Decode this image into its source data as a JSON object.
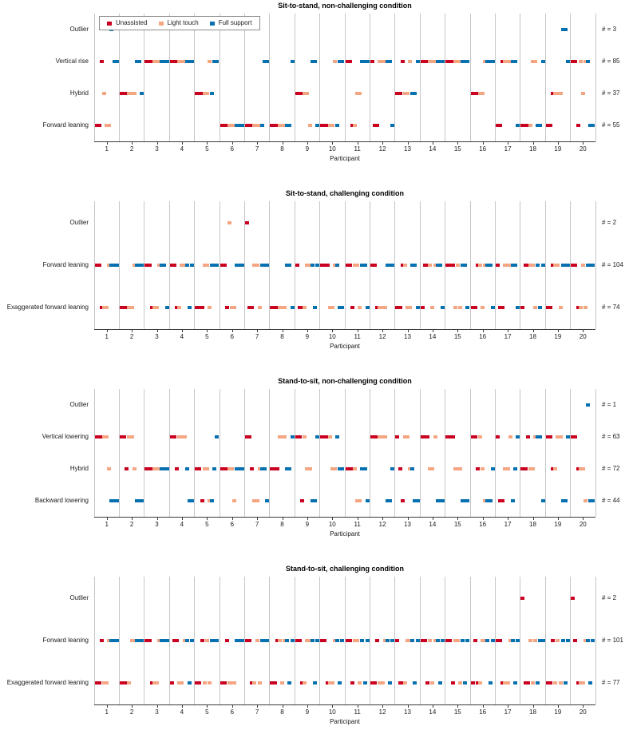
{
  "legend": {
    "items": [
      {
        "key": "U",
        "label": "Unassisted",
        "color": "#ca0020"
      },
      {
        "key": "L",
        "label": "Light touch",
        "color": "#f4a582"
      },
      {
        "key": "B",
        "label": "Full support",
        "color": "#0571b0"
      }
    ]
  },
  "x_axis": {
    "label": "Participant",
    "ticks": [
      "1",
      "2",
      "3",
      "4",
      "5",
      "6",
      "7",
      "8",
      "9",
      "10",
      "11",
      "12",
      "13",
      "14",
      "15",
      "16",
      "17",
      "18",
      "19",
      "20"
    ]
  },
  "trial_color_keys": [
    "U",
    "U",
    "U",
    "L",
    "L",
    "L",
    "B",
    "B",
    "B"
  ],
  "encoding_note": "Each participant string lists 9 trials left-to-right; the letter is the strategy row for that trial; trials 1-3 Unassisted, 4-6 Light touch, 7-9 Full support.",
  "chart_data": [
    {
      "type": "scatter",
      "title": "Sit-to-stand, non-challenging condition",
      "xlabel": "Participant",
      "x_range": [
        1,
        20
      ],
      "show_legend": true,
      "legend_position": "top-left",
      "rows": [
        {
          "key": "O",
          "label": "Outlier",
          "count": 3,
          "count_label": "# = 3"
        },
        {
          "key": "V",
          "label": "Vertical rise",
          "count": 85,
          "count_label": "# = 85"
        },
        {
          "key": "H",
          "label": "Hybrid",
          "count": 37,
          "count_label": "# = 37"
        },
        {
          "key": "F",
          "label": "Forward leaning",
          "count": 55,
          "count_label": "# = 55"
        }
      ],
      "participant_trials": [
        "FFVHFFOVV",
        "HHHHHHVVH",
        "VVVVVVVVV",
        "VVVVVVVVV",
        "HHHHHVHVV",
        "FFFFFFFFF",
        "FFFFFFFVV",
        "FFFFFFFFV",
        "HHHHHFVVF",
        "FFFFFVFVV",
        "VVFFHHVVV",
        "VFFVVVVVF",
        "HHVHHVHHV",
        "VVVVVVVVV",
        "VVVVVVVVV",
        "HHHHHVVVV",
        "FFVVVVVVF",
        "FFFFVVFFV",
        "FFHHHHOOV",
        "VVFVHVVFF"
      ]
    },
    {
      "type": "scatter",
      "title": "Sit-to-stand, challenging condition",
      "xlabel": "Participant",
      "x_range": [
        1,
        20
      ],
      "show_legend": false,
      "rows": [
        {
          "key": "O",
          "label": "Outlier",
          "count": 2,
          "count_label": "# = 2"
        },
        {
          "key": "F",
          "label": "Forward leaning",
          "count": 104,
          "count_label": "# = 104"
        },
        {
          "key": "E",
          "label": "Exaggerated forward leaning",
          "count": 74,
          "count_label": "# = 74"
        }
      ],
      "participant_trials": [
        "FFEEEFFFF",
        "EEEEEFFFF",
        "FFEEEFFFE",
        "FFEEFFFEF",
        "EEEFFEFFF",
        "FFEOEEFFF",
        "OEEFFEFFF",
        "EEEEEEFFE",
        "FEEEFFFEF",
        "FFFEEFFEE",
        "FFEFFEFFE",
        "FFEEEEFFF",
        "EEFFEEFFE",
        "EFFFEFFFE",
        "FFFEFEFFE",
        "EEFFEFFFE",
        "FEEFFFFFE",
        "EFFFFEFEF",
        "EEFFFEFFF",
        "FFEEFEFFF"
      ]
    },
    {
      "type": "scatter",
      "title": "Stand-to-sit, non-challenging condition",
      "xlabel": "Participant",
      "x_range": [
        1,
        20
      ],
      "show_legend": false,
      "rows": [
        {
          "key": "O",
          "label": "Outlier",
          "count": 1,
          "count_label": "# = 1"
        },
        {
          "key": "V",
          "label": "Vertical lowering",
          "count": 63,
          "count_label": "# = 63"
        },
        {
          "key": "H",
          "label": "Hybrid",
          "count": 72,
          "count_label": "# = 72"
        },
        {
          "key": "B",
          "label": "Backward lowering",
          "count": 44,
          "count_label": "# = 44"
        }
      ],
      "participant_trials": [
        "VVVVVHBBB",
        "VVHVVHBBB",
        "HHHHHHHHH",
        "VVHVVVHBB",
        "HHBHHBBHV",
        "HHHHHBHHH",
        "VVHBBHHHB",
        "HHHVVVHHV",
        "VVBVHHBBV",
        "VVVVHHVHH",
        "HHHHBBHHB",
        "VVVVVVBBH",
        "VHBVVHHBB",
        "VVVHHVBBB",
        "VVVHHHBBB",
        "VVHVHBBBH",
        "VBBHHVBHV",
        "HHVHHVVVB",
        "VVHHVVBBV",
        "VVHHHBOBB"
      ]
    },
    {
      "type": "scatter",
      "title": "Stand-to-sit, challenging condition",
      "xlabel": "Participant",
      "x_range": [
        1,
        20
      ],
      "show_legend": false,
      "rows": [
        {
          "key": "O",
          "label": "Outlier",
          "count": 2,
          "count_label": "# = 2"
        },
        {
          "key": "F",
          "label": "Forward leaning",
          "count": 101,
          "count_label": "# = 101"
        },
        {
          "key": "E",
          "label": "Exaggerated forward leaning",
          "count": 77,
          "count_label": "# = 77"
        }
      ],
      "participant_trials": [
        "EEFEEFFFF",
        "EEEEFFFFF",
        "FFEEEFFFF",
        "EFFEEFFEF",
        "EEFEFEFFF",
        "EEFEEEFFF",
        "FFEEFEFFF",
        "EEFFEFFEF",
        "FFEEFFFEF",
        "FFEEEFFEF",
        "FFEFFEFEF",
        "EEFEEFFEF",
        "FEEEFFFEF",
        "FFEFEFFEF",
        "FFEFFEFEF",
        "EFEEFFFEF",
        "FFEEEFFEF",
        "OEEFEFEFF",
        "EEFEFEFEF",
        "OFEEEFFEF"
      ]
    }
  ]
}
